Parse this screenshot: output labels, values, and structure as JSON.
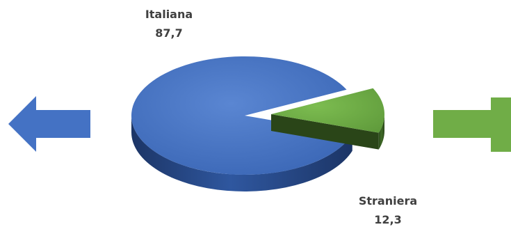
{
  "chart_data": {
    "type": "pie",
    "style": "3d",
    "slices": [
      {
        "label": "Italiana",
        "value": 87.7,
        "value_text": "87,7",
        "color": "#4472C4"
      },
      {
        "label": "Straniera",
        "value": 12.3,
        "value_text": "12,3",
        "color": "#70AD47"
      }
    ]
  },
  "arrows": {
    "left": {
      "direction": "left",
      "color": "#4472C4"
    },
    "right": {
      "direction": "right",
      "color": "#70AD47"
    }
  }
}
